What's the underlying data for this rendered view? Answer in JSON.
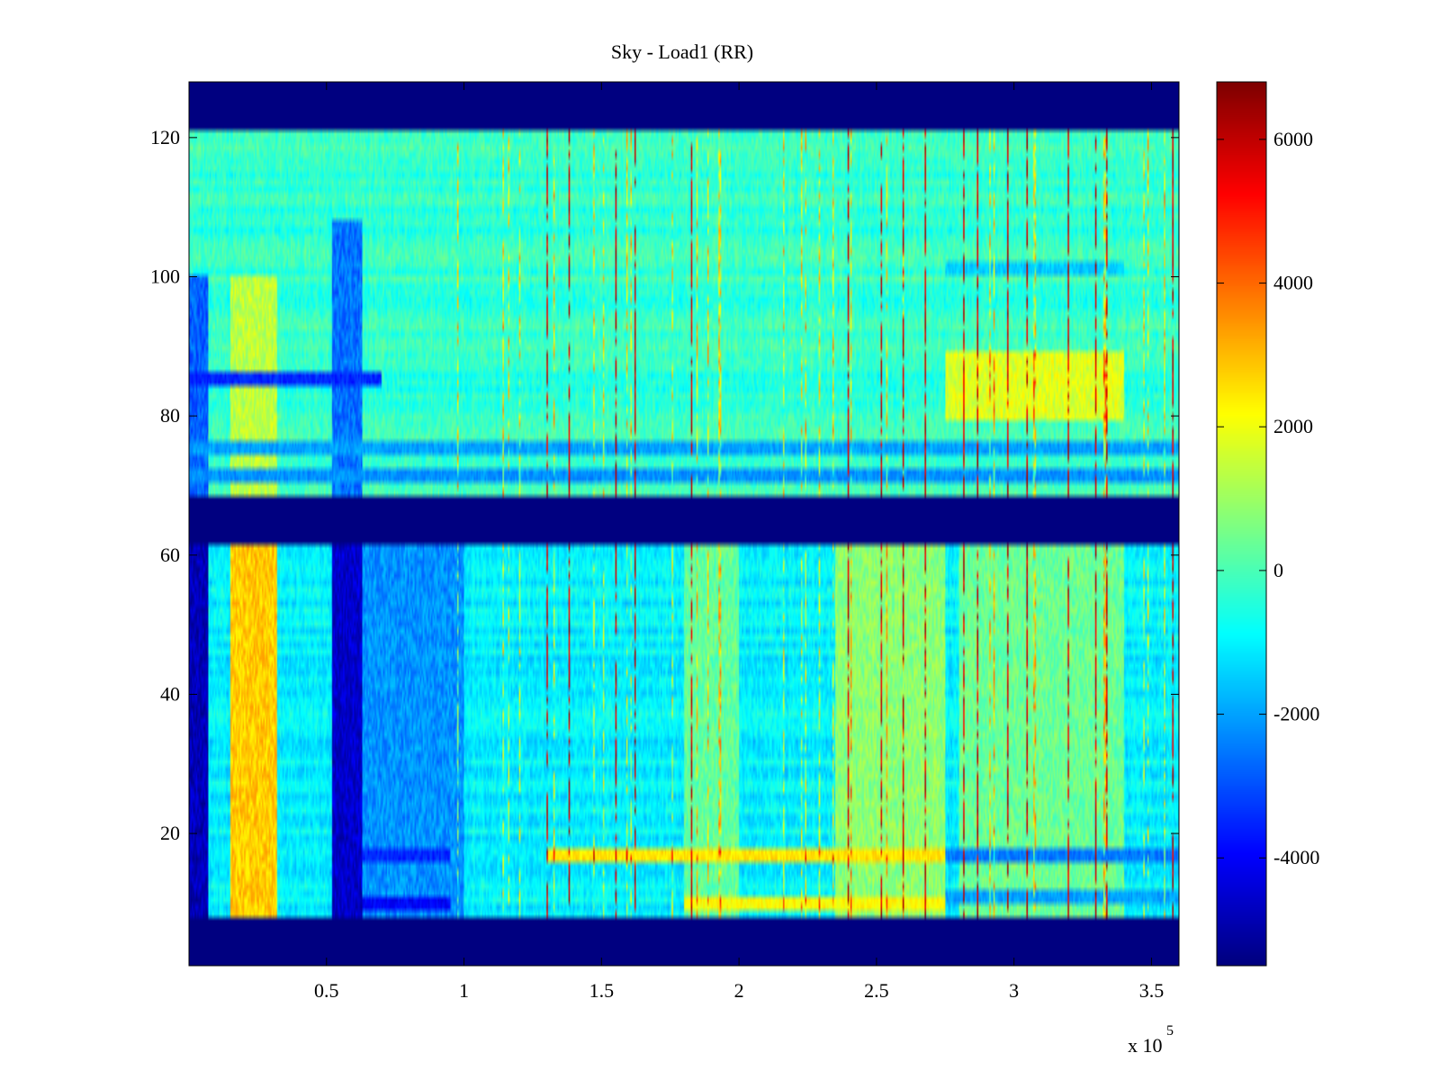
{
  "chart_data": {
    "type": "heatmap",
    "title": "Sky - Load1 (RR)",
    "xlabel": "",
    "ylabel": "",
    "x_exponent_label": "x 10",
    "x_exponent_power": "5",
    "x_scale": 100000,
    "xlim": [
      0,
      3.6
    ],
    "ylim": [
      1,
      128
    ],
    "x_ticks": [
      0.5,
      1,
      1.5,
      2,
      2.5,
      3,
      3.5
    ],
    "x_tick_labels": [
      "0.5",
      "1",
      "1.5",
      "2",
      "2.5",
      "3",
      "3.5"
    ],
    "y_ticks": [
      20,
      40,
      60,
      80,
      100,
      120
    ],
    "y_tick_labels": [
      "20",
      "40",
      "60",
      "80",
      "100",
      "120"
    ],
    "colorbar": {
      "colormap": "jet",
      "clim": [
        -5500,
        6800
      ],
      "ticks": [
        -4000,
        -2000,
        0,
        2000,
        4000,
        6000
      ],
      "tick_labels": [
        "-4000",
        "-2000",
        "0",
        "2000",
        "4000",
        "6000"
      ]
    },
    "masked_rows_value": -5500,
    "masked_row_ranges": [
      [
        1,
        7
      ],
      [
        62,
        68
      ],
      [
        122,
        128
      ]
    ],
    "row_bands": [
      {
        "rows": [
          8,
          61
        ],
        "base_value": -1000
      },
      {
        "rows": [
          69,
          121
        ],
        "base_value": -300
      }
    ],
    "column_features": [
      {
        "x": [
          0,
          0.07
        ],
        "rows": [
          8,
          61
        ],
        "value": -4800
      },
      {
        "x": [
          0.15,
          0.32
        ],
        "rows": [
          8,
          61
        ],
        "value": 2800
      },
      {
        "x": [
          0.52,
          0.63
        ],
        "rows": [
          8,
          61
        ],
        "value": -4600
      },
      {
        "x": [
          0.63,
          1.0
        ],
        "rows": [
          8,
          61
        ],
        "value": -2200
      },
      {
        "x": [
          1.8,
          2.0
        ],
        "rows": [
          8,
          61
        ],
        "value": 300
      },
      {
        "x": [
          2.35,
          2.75
        ],
        "rows": [
          8,
          61
        ],
        "value": 800
      },
      {
        "x": [
          2.8,
          3.4
        ],
        "rows": [
          8,
          61
        ],
        "value": 400
      },
      {
        "x": [
          0,
          0.07
        ],
        "rows": [
          69,
          100
        ],
        "value": -2800
      },
      {
        "x": [
          0.15,
          0.32
        ],
        "rows": [
          69,
          100
        ],
        "value": 1400
      },
      {
        "x": [
          0.52,
          0.63
        ],
        "rows": [
          69,
          108
        ],
        "value": -2600
      },
      {
        "x": [
          2.75,
          3.4
        ],
        "rows": [
          80,
          89
        ],
        "value": 1800
      }
    ],
    "row_features": [
      {
        "rows": [
          9,
          10
        ],
        "x": [
          0.63,
          0.95
        ],
        "value": -4000
      },
      {
        "rows": [
          9,
          10
        ],
        "x": [
          1.8,
          2.75
        ],
        "value": 2200
      },
      {
        "rows": [
          16,
          17
        ],
        "x": [
          0.63,
          0.95
        ],
        "value": -3500
      },
      {
        "rows": [
          16,
          17
        ],
        "x": [
          1.3,
          2.75
        ],
        "value": 2500
      },
      {
        "rows": [
          16,
          17
        ],
        "x": [
          2.75,
          3.6
        ],
        "value": -2500
      },
      {
        "rows": [
          10,
          11
        ],
        "x": [
          2.75,
          3.6
        ],
        "value": -2000
      },
      {
        "rows": [
          101,
          102
        ],
        "x": [
          2.75,
          3.4
        ],
        "value": -1500
      },
      {
        "rows": [
          71,
          72
        ],
        "x": [
          0,
          3.6
        ],
        "value": -2200
      },
      {
        "rows": [
          75,
          76
        ],
        "x": [
          0,
          3.6
        ],
        "value": -2000
      },
      {
        "rows": [
          85,
          86
        ],
        "x": [
          0,
          0.7
        ],
        "value": -3500
      }
    ],
    "spike_columns_x": [
      1.3,
      1.38,
      1.55,
      1.62,
      1.83,
      2.4,
      2.52,
      2.6,
      2.68,
      2.82,
      2.87,
      2.98,
      3.05,
      3.2,
      3.3,
      3.34,
      3.58
    ]
  }
}
